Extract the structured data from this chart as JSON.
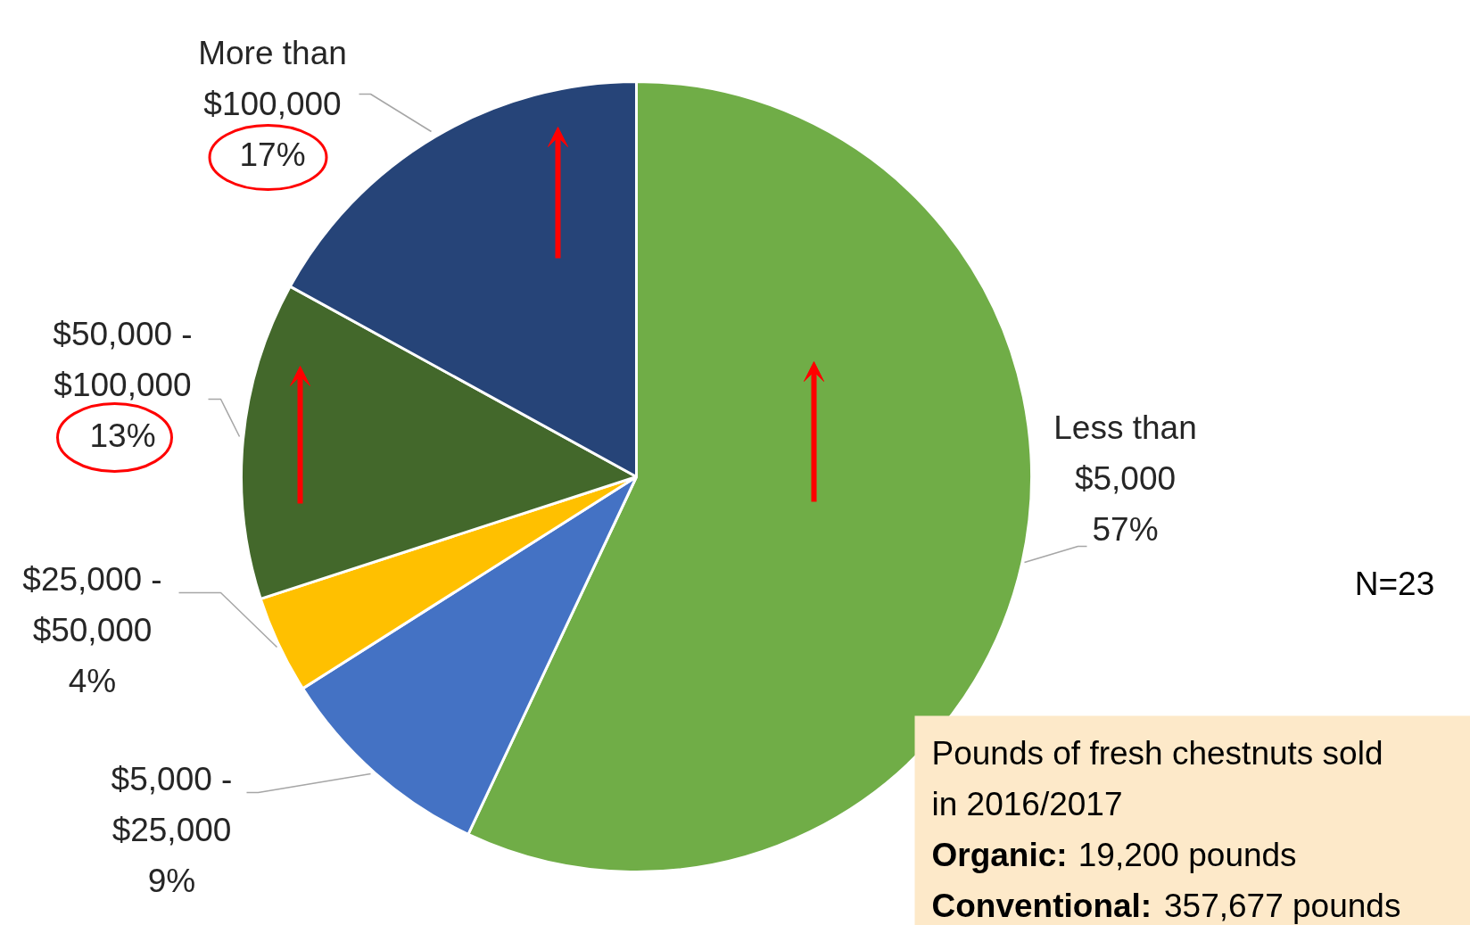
{
  "chart_data": {
    "type": "pie",
    "categories": [
      "Less than\n$5,000",
      "$5,000 -\n$25,000",
      "$25,000 -\n$50,000",
      "$50,000 -\n$100,000",
      "More than\n$100,000"
    ],
    "values": [
      57,
      9,
      4,
      13,
      17
    ],
    "value_labels": [
      "57%",
      "9%",
      "4%",
      "13%",
      "17%"
    ],
    "colors": [
      "#70ad47",
      "#4472c4",
      "#ffc000",
      "#43682b",
      "#264478"
    ],
    "annotations": [
      "N=23",
      "Pounds of fresh chestnuts sold\nin 2016/2017",
      "Organic: 19,200 pounds",
      "Conventional: 357,677 pounds"
    ]
  }
}
